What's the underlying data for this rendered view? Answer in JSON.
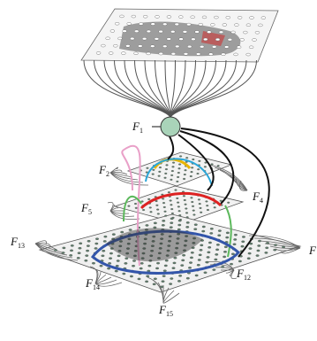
{
  "nodes": [
    {
      "letter": "F",
      "index": "1"
    },
    {
      "letter": "F",
      "index": "2"
    },
    {
      "letter": "F",
      "index": "4"
    },
    {
      "letter": "F",
      "index": "5"
    },
    {
      "letter": "F",
      "index": "13"
    },
    {
      "letter": "F",
      "index": "12"
    },
    {
      "letter": "F",
      "index": "14"
    },
    {
      "letter": "F",
      "index": "15"
    },
    {
      "letter": "F"
    }
  ]
}
